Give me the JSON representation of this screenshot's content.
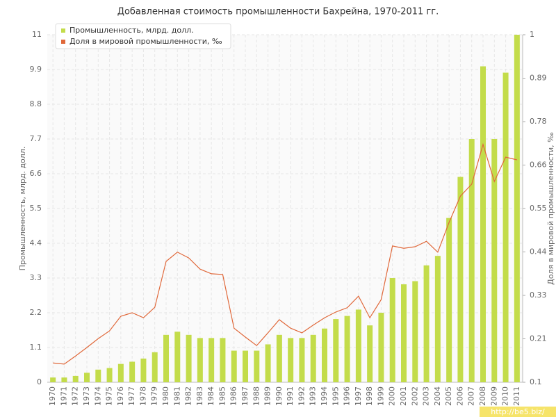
{
  "chart_data": {
    "type": "bar",
    "title": "Добавленная стоимость промышленности Бахрейна, 1970-2011 гг.",
    "y_label": "Промышленность, млрд. долл.",
    "y2_label": "Доля в мировой промышленности, ‰",
    "watermark": "http://be5.biz/",
    "categories": [
      "1970",
      "1971",
      "1972",
      "1973",
      "1974",
      "1975",
      "1976",
      "1977",
      "1978",
      "1979",
      "1980",
      "1981",
      "1982",
      "1983",
      "1984",
      "1985",
      "1986",
      "1987",
      "1988",
      "1989",
      "1990",
      "1991",
      "1992",
      "1993",
      "1994",
      "1995",
      "1996",
      "1997",
      "1998",
      "1999",
      "2000",
      "2001",
      "2002",
      "2003",
      "2004",
      "2005",
      "2006",
      "2007",
      "2008",
      "2009",
      "2010",
      "2011"
    ],
    "series": [
      {
        "name": "Промышленность, млрд. долл.",
        "type": "bar",
        "color": "#c3dc4a",
        "values": [
          0.15,
          0.15,
          0.2,
          0.3,
          0.4,
          0.45,
          0.58,
          0.65,
          0.75,
          0.95,
          1.5,
          1.6,
          1.5,
          1.4,
          1.4,
          1.4,
          1.0,
          1.0,
          1.0,
          1.2,
          1.5,
          1.4,
          1.4,
          1.5,
          1.7,
          2.0,
          2.1,
          2.3,
          1.8,
          2.2,
          3.3,
          3.1,
          3.2,
          3.7,
          4.0,
          5.2,
          6.5,
          7.7,
          10.0,
          7.7,
          9.8,
          11
        ]
      },
      {
        "name": "Доля в мировой промышленности, ‰",
        "type": "line",
        "axis": "y2",
        "color": "#e0683a",
        "values": [
          0.15,
          0.147,
          0.168,
          0.19,
          0.213,
          0.233,
          0.271,
          0.28,
          0.267,
          0.294,
          0.413,
          0.437,
          0.422,
          0.393,
          0.381,
          0.379,
          0.24,
          0.217,
          0.195,
          0.228,
          0.262,
          0.24,
          0.228,
          0.248,
          0.267,
          0.282,
          0.293,
          0.323,
          0.267,
          0.314,
          0.453,
          0.447,
          0.451,
          0.465,
          0.437,
          0.514,
          0.582,
          0.613,
          0.716,
          0.62,
          0.683,
          0.676
        ]
      }
    ],
    "ylim": [
      0,
      11
    ],
    "yticks": [
      0,
      1.1,
      2.2,
      3.3,
      4.4,
      5.5,
      6.6,
      7.7,
      8.8,
      9.9,
      11
    ],
    "y2lim": [
      0.1,
      1
    ],
    "y2ticks": [
      0.1,
      {
        "value": 0.2125,
        "label": "0.21"
      },
      {
        "value": 0.325,
        "label": "0.33"
      },
      {
        "value": 0.4375,
        "label": "0.44"
      },
      0.55,
      {
        "value": 0.6625,
        "label": "0.66"
      },
      {
        "value": 0.775,
        "label": "0.78"
      },
      {
        "value": 0.8875,
        "label": "0.89"
      },
      1
    ],
    "grid": true
  }
}
